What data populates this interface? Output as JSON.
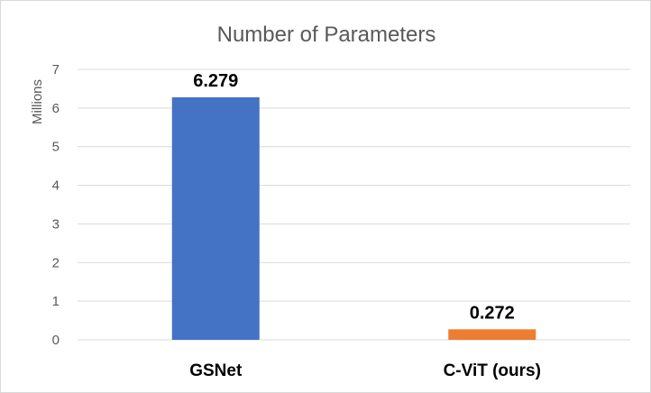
{
  "chart_data": {
    "type": "bar",
    "title": "Number of Parameters",
    "ylabel": "Millions",
    "xlabel": "",
    "categories": [
      "GSNet",
      "C-ViT (ours)"
    ],
    "values": [
      6.279,
      0.272
    ],
    "data_labels": [
      "6.279",
      "0.272"
    ],
    "bar_colors": [
      "#4472c4",
      "#ed7d31"
    ],
    "ylim": [
      0,
      7
    ],
    "yticks": [
      0,
      1,
      2,
      3,
      4,
      5,
      6,
      7
    ],
    "grid": true,
    "legend": "none"
  }
}
